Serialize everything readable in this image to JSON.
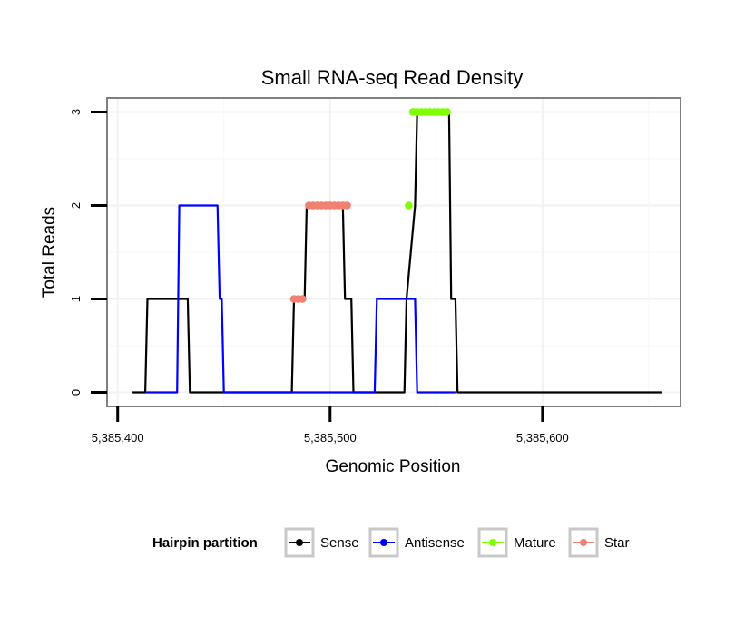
{
  "chart_data": {
    "type": "line",
    "title": "Small RNA-seq Read Density",
    "xlabel": "Genomic Position",
    "ylabel": "Total Reads",
    "xlim": [
      5385395,
      5385665
    ],
    "ylim": [
      -0.15,
      3.15
    ],
    "x_ticks": [
      5385400,
      5385500,
      5385600
    ],
    "x_tick_labels": [
      "5,385,400",
      "5,385,500",
      "5,385,600"
    ],
    "y_ticks": [
      0,
      1,
      2,
      3
    ],
    "y_tick_labels": [
      "0",
      "1",
      "2",
      "3"
    ],
    "grid": true,
    "legend": {
      "title": "Hairpin partition",
      "position": "bottom",
      "entries": [
        "Sense",
        "Antisense",
        "Mature",
        "Star"
      ]
    },
    "series": [
      {
        "name": "Sense",
        "color": "#000000",
        "style": "line",
        "x": [
          5385407,
          5385413,
          5385414,
          5385433,
          5385434,
          5385482,
          5385483,
          5385488,
          5385489,
          5385506,
          5385507,
          5385510,
          5385511,
          5385535,
          5385536,
          5385540,
          5385541,
          5385556,
          5385557,
          5385559,
          5385560,
          5385656
        ],
        "y": [
          0,
          0,
          1,
          1,
          0,
          0,
          1,
          1,
          2,
          2,
          1,
          1,
          0,
          0,
          1,
          2,
          3,
          3,
          1,
          1,
          0,
          0
        ]
      },
      {
        "name": "Antisense",
        "color": "#0000ff",
        "style": "line",
        "x": [
          5385413,
          5385428,
          5385429,
          5385447,
          5385448,
          5385449,
          5385450,
          5385521,
          5385522,
          5385540,
          5385541,
          5385559
        ],
        "y": [
          0,
          0,
          2,
          2,
          1,
          1,
          0,
          0,
          1,
          1,
          0,
          0
        ]
      },
      {
        "name": "Mature",
        "color": "#7fff00",
        "style": "points",
        "x": [
          5385537,
          5385539,
          5385541,
          5385543,
          5385545,
          5385547,
          5385549,
          5385551,
          5385553,
          5385555
        ],
        "y": [
          2,
          3,
          3,
          3,
          3,
          3,
          3,
          3,
          3,
          3
        ]
      },
      {
        "name": "Star",
        "color": "#f08070",
        "style": "points",
        "x": [
          5385483,
          5385485,
          5385487,
          5385490,
          5385492,
          5385494,
          5385496,
          5385498,
          5385500,
          5385502,
          5385504,
          5385506,
          5385508
        ],
        "y": [
          1,
          1,
          1,
          2,
          2,
          2,
          2,
          2,
          2,
          2,
          2,
          2,
          2
        ]
      }
    ]
  }
}
